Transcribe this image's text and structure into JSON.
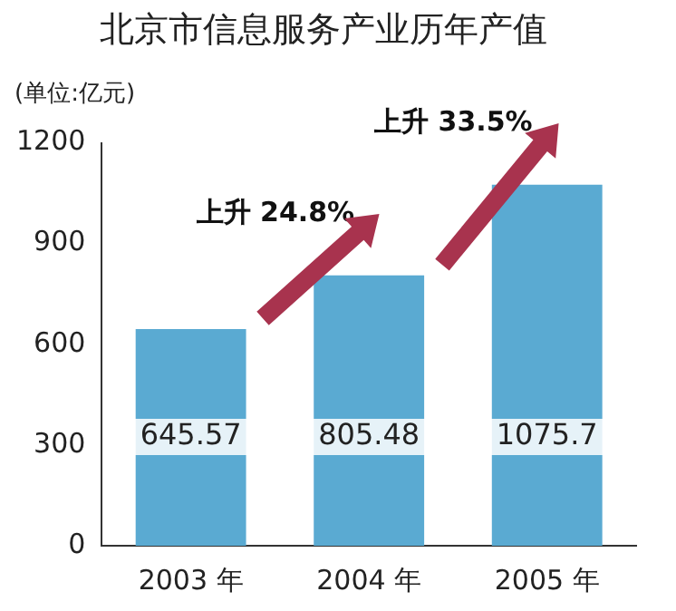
{
  "chart_data": {
    "type": "bar",
    "title": "北京市信息服务产业历年产值",
    "ylabel": "(单位:亿元)",
    "categories": [
      "2003 年",
      "2004 年",
      "2005 年"
    ],
    "values": [
      645.57,
      805.48,
      1075.7
    ],
    "color": "#5aaad2",
    "ylim": [
      0,
      1200
    ],
    "yticks": [
      0,
      300,
      600,
      900,
      1200
    ],
    "grid": false,
    "data_labels": true,
    "annotations": [
      "上升 24.8%",
      "上升 33.5%"
    ]
  }
}
